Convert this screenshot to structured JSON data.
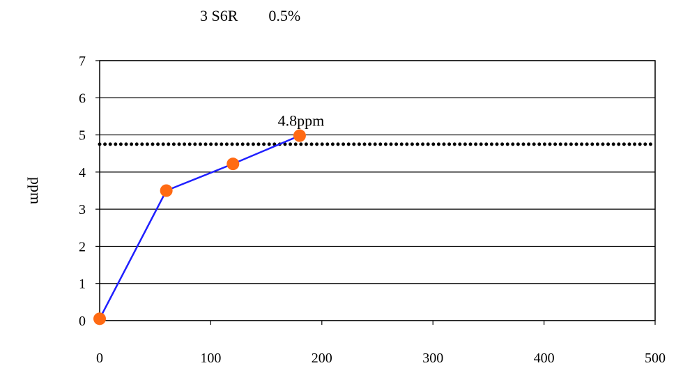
{
  "title_parts": [
    "3 S6R",
    "0.5%"
  ],
  "chart_data": {
    "type": "line",
    "title": "3 S6R 0.5%",
    "xlabel": "",
    "ylabel": "ppm",
    "xlim": [
      0,
      500
    ],
    "ylim": [
      0,
      7
    ],
    "xticks": [
      0,
      100,
      200,
      300,
      400,
      500
    ],
    "yticks": [
      0,
      1,
      2,
      3,
      4,
      5,
      6,
      7
    ],
    "grid": "horizontal",
    "series": [
      {
        "x": [
          0,
          60,
          120,
          180
        ],
        "y": [
          0.05,
          3.5,
          4.22,
          4.98
        ],
        "line_color": "#1f1fff",
        "marker_color": "#ff6a13"
      }
    ],
    "reference_line": {
      "y": 4.75,
      "style": "dotted",
      "color": "#000000"
    },
    "annotations": [
      {
        "text": "4.8ppm",
        "x": 180,
        "y": 4.98
      }
    ]
  }
}
